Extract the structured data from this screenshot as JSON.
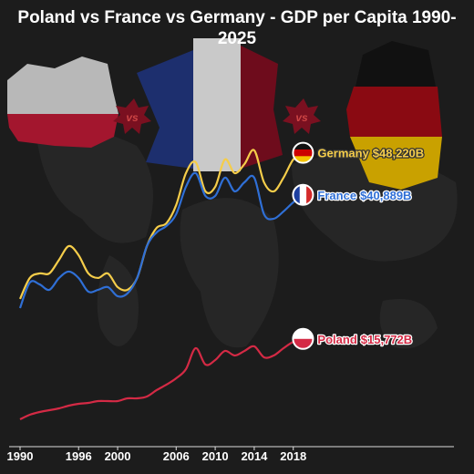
{
  "chart_data": {
    "type": "line",
    "title": "Poland vs France vs Germany - GDP per Capita 1990-2025",
    "x": [
      1990,
      1991,
      1992,
      1993,
      1994,
      1995,
      1996,
      1997,
      1998,
      1999,
      2000,
      2001,
      2002,
      2003,
      2004,
      2005,
      2006,
      2007,
      2008,
      2009,
      2010,
      2011,
      2012,
      2013,
      2014,
      2015,
      2016,
      2017,
      2018,
      2019
    ],
    "series": [
      {
        "name": "Germany",
        "color": "#f5cd4a",
        "values": [
          22737,
          26394,
          27189,
          27189,
          29574,
          31959,
          30369,
          27189,
          26394,
          27189,
          24804,
          24327,
          26394,
          31959,
          35139,
          35934,
          39114,
          44679,
          46587,
          41499,
          42294,
          47064,
          44679,
          46269,
          48654,
          43089,
          41499,
          43884,
          47064,
          48220
        ],
        "value_labels": [
          null,
          null,
          null,
          null,
          null,
          null,
          null,
          null,
          null,
          null,
          null,
          null,
          null,
          null,
          null,
          null,
          null,
          null,
          null,
          null,
          null,
          null,
          null,
          null,
          null,
          null,
          null,
          null,
          null,
          "$48,220B"
        ]
      },
      {
        "name": "France",
        "color": "#2f6fd6",
        "values": [
          21147,
          25599,
          25281,
          24327,
          26394,
          27507,
          26394,
          24009,
          24327,
          24804,
          23214,
          23691,
          26394,
          31959,
          34344,
          35457,
          37524,
          42294,
          44679,
          40704,
          40704,
          43884,
          41499,
          43089,
          43884,
          37524,
          36729,
          38001,
          39591,
          40889
        ],
        "value_labels": [
          null,
          null,
          null,
          null,
          null,
          null,
          null,
          null,
          null,
          null,
          null,
          null,
          null,
          null,
          null,
          null,
          null,
          null,
          null,
          null,
          null,
          null,
          null,
          null,
          null,
          null,
          null,
          null,
          null,
          "$40,889B"
        ]
      },
      {
        "name": "Poland",
        "color": "#d42a45",
        "values": [
          1749,
          2544,
          3021,
          3339,
          3657,
          4134,
          4452,
          4611,
          4929,
          4929,
          4929,
          5406,
          5406,
          5724,
          6837,
          7791,
          8904,
          10494,
          14151,
          11289,
          12084,
          13674,
          12879,
          13674,
          14469,
          12561,
          12879,
          14151,
          15264,
          15772
        ],
        "value_labels": [
          null,
          null,
          null,
          null,
          null,
          null,
          null,
          null,
          null,
          null,
          null,
          null,
          null,
          null,
          null,
          null,
          null,
          null,
          null,
          null,
          null,
          null,
          null,
          null,
          null,
          null,
          null,
          null,
          null,
          "$15,772B"
        ]
      }
    ],
    "xlim": [
      1990,
      2034
    ],
    "xticks": [
      1990,
      1996,
      2000,
      2006,
      2010,
      2014,
      2018
    ],
    "ylim": [
      0,
      55000
    ]
  }
}
